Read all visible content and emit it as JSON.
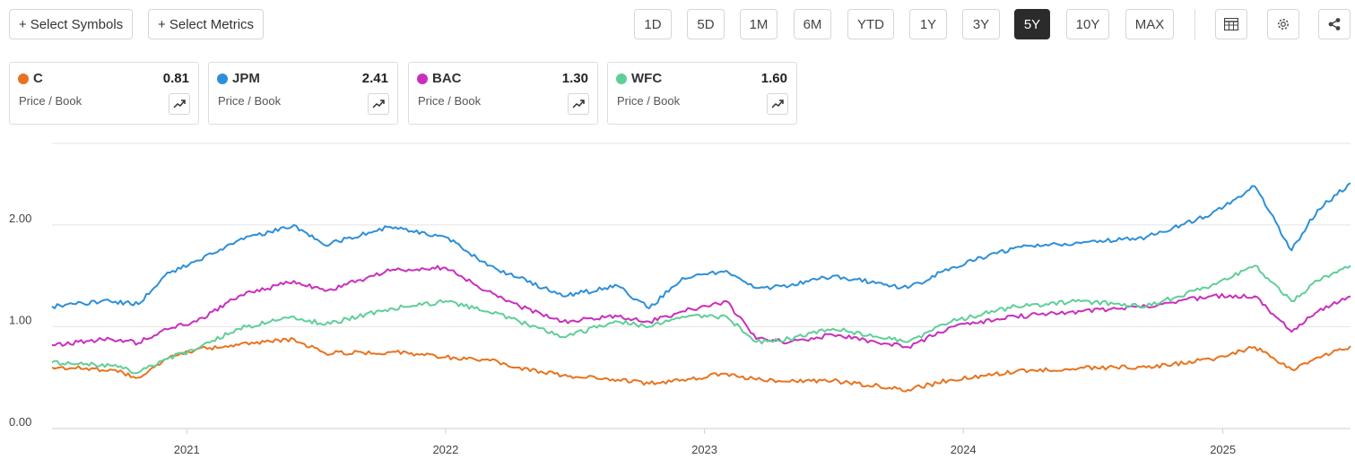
{
  "toolbar": {
    "select_symbols": "+ Select Symbols",
    "select_metrics": "+ Select Metrics",
    "ranges": [
      "1D",
      "5D",
      "1M",
      "6M",
      "YTD",
      "1Y",
      "3Y",
      "5Y",
      "10Y",
      "MAX"
    ],
    "active_range": "5Y",
    "icons": [
      "table-icon",
      "gear-icon",
      "share-icon"
    ]
  },
  "cards": [
    {
      "symbol": "C",
      "value": "0.81",
      "metric": "Price / Book",
      "color": "#e8731f"
    },
    {
      "symbol": "JPM",
      "value": "2.41",
      "metric": "Price / Book",
      "color": "#2d8fd9"
    },
    {
      "symbol": "BAC",
      "value": "1.30",
      "metric": "Price / Book",
      "color": "#c92fbd"
    },
    {
      "symbol": "WFC",
      "value": "1.60",
      "metric": "Price / Book",
      "color": "#5fcf98"
    }
  ],
  "chart_data": {
    "type": "line",
    "xlim": [
      "2020-06-25",
      "2025-06-30"
    ],
    "ylim": [
      0,
      2.8
    ],
    "y_ticks": [
      "0.00",
      "1.00",
      "2.00"
    ],
    "x_ticks": [
      "2021",
      "2022",
      "2023",
      "2024",
      "2025"
    ],
    "grid": true,
    "legend": "cards-top",
    "series": [
      {
        "name": "C",
        "color": "#e8731f",
        "points": [
          [
            "2020-06-25",
            0.6
          ],
          [
            "2020-09-15",
            0.58
          ],
          [
            "2020-10-25",
            0.5
          ],
          [
            "2020-12-01",
            0.68
          ],
          [
            "2021-01-15",
            0.78
          ],
          [
            "2021-03-15",
            0.82
          ],
          [
            "2021-06-01",
            0.88
          ],
          [
            "2021-07-15",
            0.74
          ],
          [
            "2021-10-15",
            0.75
          ],
          [
            "2022-01-01",
            0.7
          ],
          [
            "2022-03-01",
            0.68
          ],
          [
            "2022-04-15",
            0.6
          ],
          [
            "2022-06-15",
            0.52
          ],
          [
            "2022-09-01",
            0.48
          ],
          [
            "2022-10-15",
            0.44
          ],
          [
            "2022-12-01",
            0.48
          ],
          [
            "2023-02-01",
            0.54
          ],
          [
            "2023-03-15",
            0.48
          ],
          [
            "2023-05-01",
            0.46
          ],
          [
            "2023-07-01",
            0.47
          ],
          [
            "2023-10-15",
            0.38
          ],
          [
            "2023-12-15",
            0.48
          ],
          [
            "2024-03-15",
            0.56
          ],
          [
            "2024-06-15",
            0.6
          ],
          [
            "2024-09-15",
            0.6
          ],
          [
            "2024-12-15",
            0.68
          ],
          [
            "2025-02-15",
            0.8
          ],
          [
            "2025-04-08",
            0.58
          ],
          [
            "2025-05-15",
            0.7
          ],
          [
            "2025-06-30",
            0.81
          ]
        ]
      },
      {
        "name": "JPM",
        "color": "#2d8fd9",
        "points": [
          [
            "2020-06-25",
            1.2
          ],
          [
            "2020-09-15",
            1.25
          ],
          [
            "2020-10-25",
            1.22
          ],
          [
            "2020-12-01",
            1.5
          ],
          [
            "2021-01-15",
            1.65
          ],
          [
            "2021-03-15",
            1.85
          ],
          [
            "2021-06-01",
            2.0
          ],
          [
            "2021-07-15",
            1.8
          ],
          [
            "2021-10-15",
            1.98
          ],
          [
            "2022-01-01",
            1.88
          ],
          [
            "2022-03-01",
            1.6
          ],
          [
            "2022-04-15",
            1.48
          ],
          [
            "2022-06-15",
            1.3
          ],
          [
            "2022-09-01",
            1.4
          ],
          [
            "2022-10-15",
            1.18
          ],
          [
            "2022-12-01",
            1.48
          ],
          [
            "2023-02-01",
            1.55
          ],
          [
            "2023-03-15",
            1.38
          ],
          [
            "2023-05-01",
            1.4
          ],
          [
            "2023-07-01",
            1.5
          ],
          [
            "2023-10-15",
            1.38
          ],
          [
            "2023-12-15",
            1.58
          ],
          [
            "2024-03-15",
            1.78
          ],
          [
            "2024-06-15",
            1.82
          ],
          [
            "2024-09-15",
            1.88
          ],
          [
            "2024-12-15",
            2.1
          ],
          [
            "2025-02-15",
            2.38
          ],
          [
            "2025-04-08",
            1.75
          ],
          [
            "2025-05-15",
            2.15
          ],
          [
            "2025-06-30",
            2.41
          ]
        ]
      },
      {
        "name": "BAC",
        "color": "#c92fbd",
        "points": [
          [
            "2020-06-25",
            0.82
          ],
          [
            "2020-09-15",
            0.88
          ],
          [
            "2020-10-25",
            0.84
          ],
          [
            "2020-12-01",
            0.98
          ],
          [
            "2021-01-15",
            1.05
          ],
          [
            "2021-03-15",
            1.3
          ],
          [
            "2021-06-01",
            1.45
          ],
          [
            "2021-07-15",
            1.35
          ],
          [
            "2021-10-15",
            1.55
          ],
          [
            "2022-01-01",
            1.58
          ],
          [
            "2022-03-01",
            1.35
          ],
          [
            "2022-04-15",
            1.2
          ],
          [
            "2022-06-15",
            1.05
          ],
          [
            "2022-09-01",
            1.1
          ],
          [
            "2022-10-15",
            1.05
          ],
          [
            "2022-12-01",
            1.15
          ],
          [
            "2023-02-01",
            1.25
          ],
          [
            "2023-03-15",
            0.88
          ],
          [
            "2023-05-01",
            0.85
          ],
          [
            "2023-07-01",
            0.92
          ],
          [
            "2023-10-15",
            0.8
          ],
          [
            "2023-12-15",
            1.0
          ],
          [
            "2024-03-15",
            1.1
          ],
          [
            "2024-06-15",
            1.15
          ],
          [
            "2024-09-15",
            1.2
          ],
          [
            "2024-12-15",
            1.3
          ],
          [
            "2025-02-15",
            1.3
          ],
          [
            "2025-04-08",
            0.95
          ],
          [
            "2025-05-15",
            1.15
          ],
          [
            "2025-06-30",
            1.3
          ]
        ]
      },
      {
        "name": "WFC",
        "color": "#5fcf98",
        "points": [
          [
            "2020-06-25",
            0.65
          ],
          [
            "2020-09-15",
            0.62
          ],
          [
            "2020-10-25",
            0.55
          ],
          [
            "2020-12-01",
            0.68
          ],
          [
            "2021-01-15",
            0.78
          ],
          [
            "2021-03-15",
            0.98
          ],
          [
            "2021-06-01",
            1.1
          ],
          [
            "2021-07-15",
            1.02
          ],
          [
            "2021-10-15",
            1.18
          ],
          [
            "2022-01-01",
            1.25
          ],
          [
            "2022-03-01",
            1.15
          ],
          [
            "2022-04-15",
            1.05
          ],
          [
            "2022-06-15",
            0.9
          ],
          [
            "2022-09-01",
            1.05
          ],
          [
            "2022-10-15",
            1.0
          ],
          [
            "2022-12-01",
            1.1
          ],
          [
            "2023-02-01",
            1.1
          ],
          [
            "2023-03-15",
            0.85
          ],
          [
            "2023-05-01",
            0.88
          ],
          [
            "2023-07-01",
            0.98
          ],
          [
            "2023-10-15",
            0.85
          ],
          [
            "2023-12-15",
            1.05
          ],
          [
            "2024-03-15",
            1.2
          ],
          [
            "2024-06-15",
            1.25
          ],
          [
            "2024-09-15",
            1.2
          ],
          [
            "2024-12-15",
            1.4
          ],
          [
            "2025-02-15",
            1.6
          ],
          [
            "2025-04-08",
            1.25
          ],
          [
            "2025-05-15",
            1.45
          ],
          [
            "2025-06-30",
            1.6
          ]
        ]
      }
    ]
  }
}
